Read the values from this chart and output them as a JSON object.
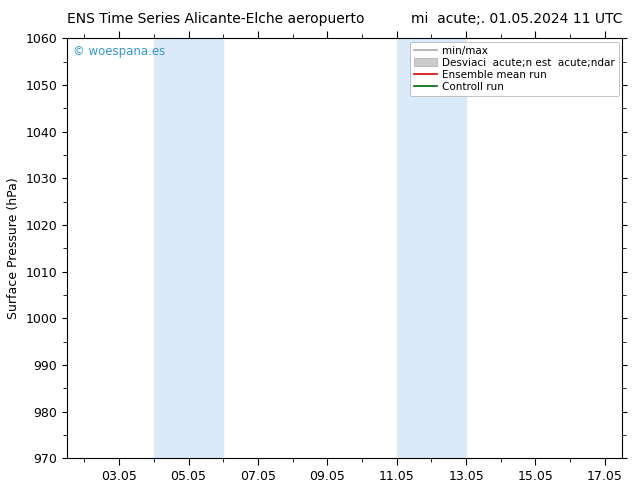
{
  "title_left": "ENS Time Series Alicante-Elche aeropuerto",
  "title_right": "mi  acute;. 01.05.2024 11 UTC",
  "ylabel": "Surface Pressure (hPa)",
  "ylim": [
    970,
    1060
  ],
  "yticks": [
    970,
    980,
    990,
    1000,
    1010,
    1020,
    1030,
    1040,
    1050,
    1060
  ],
  "xlim_start": 1.5,
  "xlim_end": 17.5,
  "xtick_labels": [
    "03.05",
    "05.05",
    "07.05",
    "09.05",
    "11.05",
    "13.05",
    "15.05",
    "17.05"
  ],
  "xtick_positions": [
    3,
    5,
    7,
    9,
    11,
    13,
    15,
    17
  ],
  "shade_bands": [
    {
      "xmin": 4.0,
      "xmax": 6.0
    },
    {
      "xmin": 11.0,
      "xmax": 13.0
    }
  ],
  "shade_color": "#daeaf8",
  "watermark_text": "© woespana.es",
  "watermark_color": "#3399cc",
  "legend_labels": [
    "min/max",
    "Desviaci  acute;n est  acute;ndar",
    "Ensemble mean run",
    "Controll run"
  ],
  "legend_line_colors": [
    "#aaaaaa",
    "#cccccc",
    "#dd0000",
    "#006600"
  ],
  "background_color": "#ffffff",
  "title_fontsize": 10,
  "tick_fontsize": 9,
  "ylabel_fontsize": 9,
  "watermark_fontsize": 8.5,
  "legend_fontsize": 7.5
}
